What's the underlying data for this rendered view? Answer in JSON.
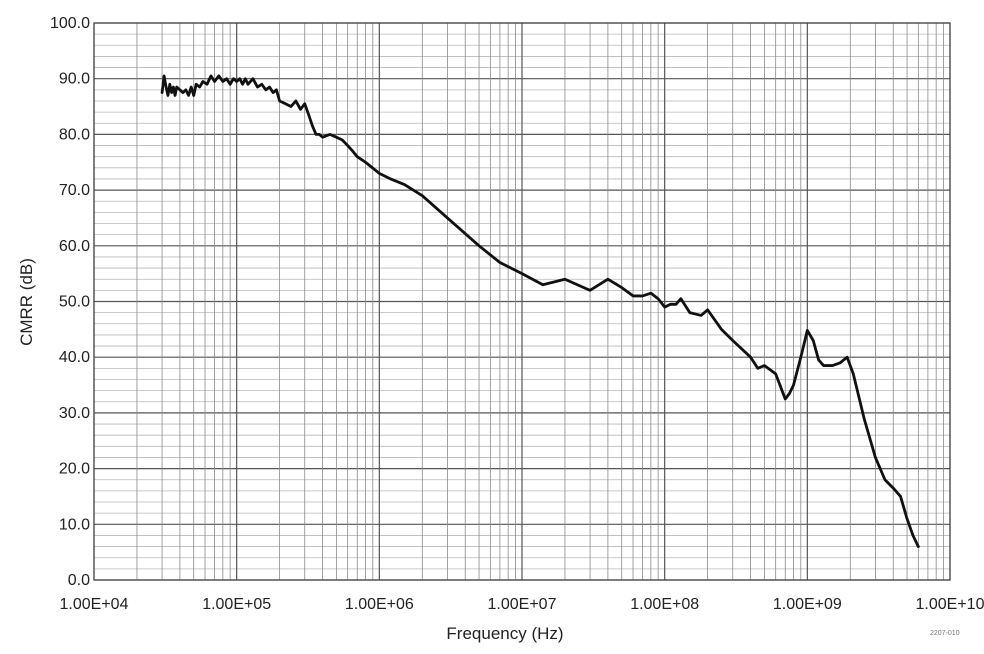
{
  "chart_data": {
    "type": "line",
    "title": "",
    "xlabel": "Frequency (Hz)",
    "ylabel": "CMRR  (dB)",
    "x_scale": "log",
    "xlim": [
      10000,
      10000000000
    ],
    "ylim": [
      0,
      100
    ],
    "grid": true,
    "legend": "none",
    "x_tick_labels": [
      "1.00E+04",
      "1.00E+05",
      "1.00E+06",
      "1.00E+07",
      "1.00E+08",
      "1.00E+09",
      "1.00E+10"
    ],
    "y_tick_labels": [
      "0.0",
      "10.0",
      "20.0",
      "30.0",
      "40.0",
      "50.0",
      "60.0",
      "70.0",
      "80.0",
      "90.0",
      "100.0"
    ],
    "figure_code": "2207-010",
    "series": [
      {
        "color": "#111111",
        "x": [
          30000,
          31000,
          32000,
          33000,
          34000,
          35000,
          36000,
          37000,
          38000,
          40000,
          42000,
          44000,
          46000,
          48000,
          50000,
          52000,
          55000,
          58000,
          62000,
          66000,
          70000,
          75000,
          80000,
          85000,
          90000,
          95000,
          100000,
          105000,
          110000,
          115000,
          120000,
          130000,
          140000,
          150000,
          160000,
          170000,
          180000,
          190000,
          200000,
          220000,
          240000,
          260000,
          280000,
          300000,
          320000,
          340000,
          360000,
          380000,
          400000,
          450000,
          500000,
          550000,
          600000,
          650000,
          700000,
          800000,
          1000000,
          1200000,
          1500000,
          2000000,
          3000000,
          5000000,
          7000000,
          10000000,
          14000000,
          20000000,
          30000000,
          40000000,
          50000000,
          60000000,
          70000000,
          80000000,
          90000000,
          100000000,
          110000000,
          120000000,
          130000000,
          150000000,
          180000000,
          200000000,
          250000000,
          300000000,
          400000000,
          450000000,
          500000000,
          600000000,
          700000000,
          750000000,
          800000000,
          900000000,
          1000000000,
          1100000000,
          1200000000,
          1300000000,
          1500000000,
          1700000000,
          1900000000,
          2100000000,
          2500000000,
          3000000000,
          3500000000,
          4000000000,
          4500000000,
          5000000000,
          5500000000,
          6000000000
        ],
        "y": [
          87.5,
          90.5,
          88.5,
          87.0,
          89.0,
          87.5,
          88.5,
          87.0,
          88.5,
          88.0,
          87.5,
          88.0,
          87.0,
          88.5,
          87.0,
          89.0,
          88.5,
          89.5,
          89.0,
          90.5,
          89.5,
          90.5,
          89.5,
          90.0,
          89.0,
          90.0,
          89.5,
          90.0,
          89.0,
          90.0,
          89.0,
          90.0,
          88.5,
          89.0,
          88.0,
          88.5,
          87.5,
          88.0,
          86.0,
          85.5,
          85.0,
          86.0,
          84.5,
          85.5,
          83.5,
          81.5,
          80.0,
          80.0,
          79.5,
          80.0,
          79.5,
          79.0,
          78.0,
          77.0,
          76.0,
          75.0,
          73.0,
          72.0,
          71.0,
          69.0,
          65.0,
          60.0,
          57.0,
          55.0,
          53.0,
          54.0,
          52.0,
          54.0,
          52.5,
          51.0,
          51.0,
          51.5,
          50.5,
          49.0,
          49.5,
          49.5,
          50.5,
          48.0,
          47.5,
          48.5,
          45.0,
          43.0,
          40.0,
          38.0,
          38.5,
          37.0,
          32.5,
          33.5,
          35.0,
          40.0,
          44.8,
          43.0,
          39.5,
          38.5,
          38.5,
          39.0,
          40.0,
          37.0,
          29.0,
          22.0,
          18.0,
          16.5,
          15.0,
          11.0,
          8.0,
          6.0
        ]
      }
    ]
  }
}
